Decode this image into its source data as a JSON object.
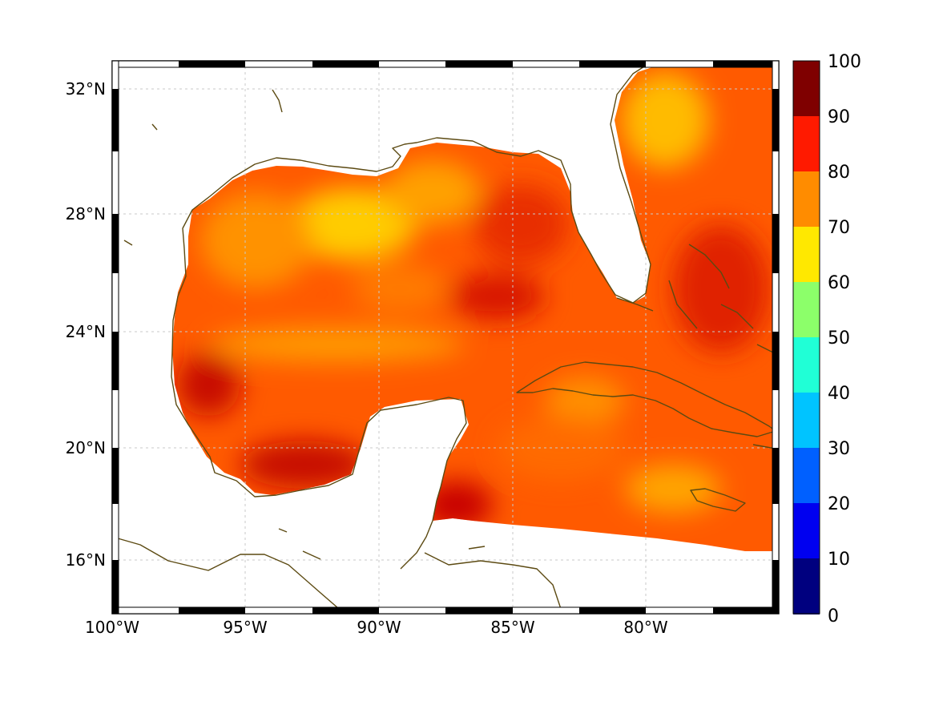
{
  "map": {
    "projection": "equidistant-cylindrical",
    "lon_range": [
      -100,
      -75
    ],
    "lat_range": [
      14.1,
      33
    ],
    "lat_ticks": [
      {
        "value": 32,
        "label": "32°N"
      },
      {
        "value": 28,
        "label": "28°N"
      },
      {
        "value": 24,
        "label": "24°N"
      },
      {
        "value": 20,
        "label": "20°N"
      },
      {
        "value": 16,
        "label": "16°N"
      }
    ],
    "lon_ticks": [
      {
        "value": -100,
        "label": "100°W"
      },
      {
        "value": -95,
        "label": "95°W"
      },
      {
        "value": -90,
        "label": "90°W"
      },
      {
        "value": -85,
        "label": "85°W"
      },
      {
        "value": -80,
        "label": "80°W"
      }
    ],
    "grid": true,
    "coastline_color": "#5c4a12",
    "frame": "black-white-alternating",
    "field_colormap": "jet",
    "field_range_typical": [
      60,
      98
    ]
  },
  "colorbar": {
    "position": "right",
    "range": [
      0,
      100
    ],
    "ticks": [
      "0",
      "10",
      "20",
      "30",
      "40",
      "50",
      "60",
      "70",
      "80",
      "90",
      "100"
    ],
    "colormap": "jet"
  }
}
